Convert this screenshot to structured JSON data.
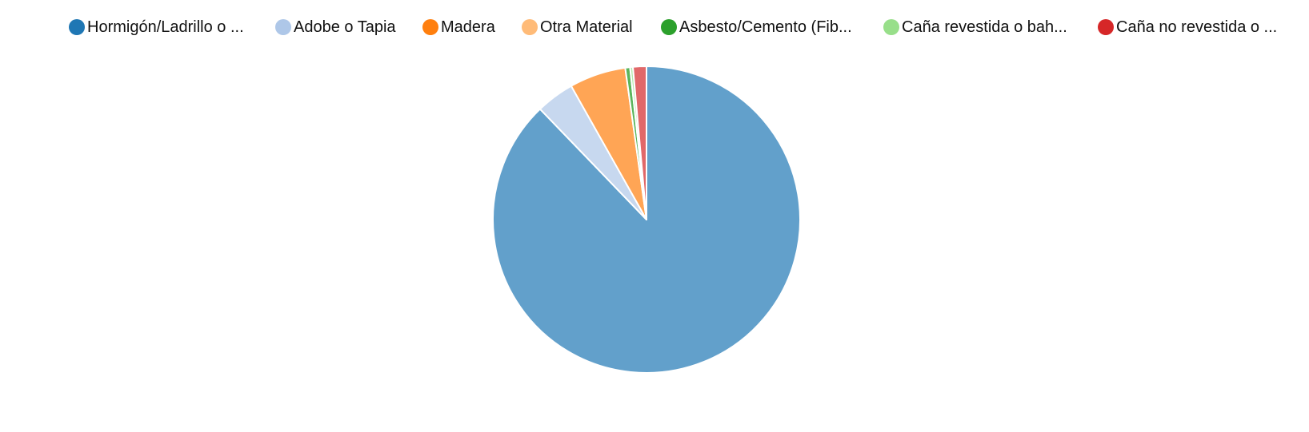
{
  "chart_data": {
    "type": "pie",
    "categories": [
      "Hormigón/Ladrillo o ...",
      "Adobe o Tapia",
      "Madera",
      "Otra Material",
      "Asbesto/Cemento (Fib...",
      "Caña revestida o bah...",
      "Caña no revestida o ..."
    ],
    "values": [
      87.2,
      4.0,
      5.9,
      0.0,
      0.5,
      0.3,
      1.4
    ],
    "legend_colors": [
      "#1f77b4",
      "#aec7e8",
      "#ff7f0e",
      "#ffbb78",
      "#2ca02c",
      "#98df8a",
      "#d62728"
    ],
    "slice_colors": [
      "#62a0cb",
      "#c7d8ef",
      "#ffa555",
      "#ffca9a",
      "#5bb55b",
      "#b5e9ad",
      "#e16869"
    ],
    "legend_position": "top",
    "start_angle": "top, clockwise"
  }
}
